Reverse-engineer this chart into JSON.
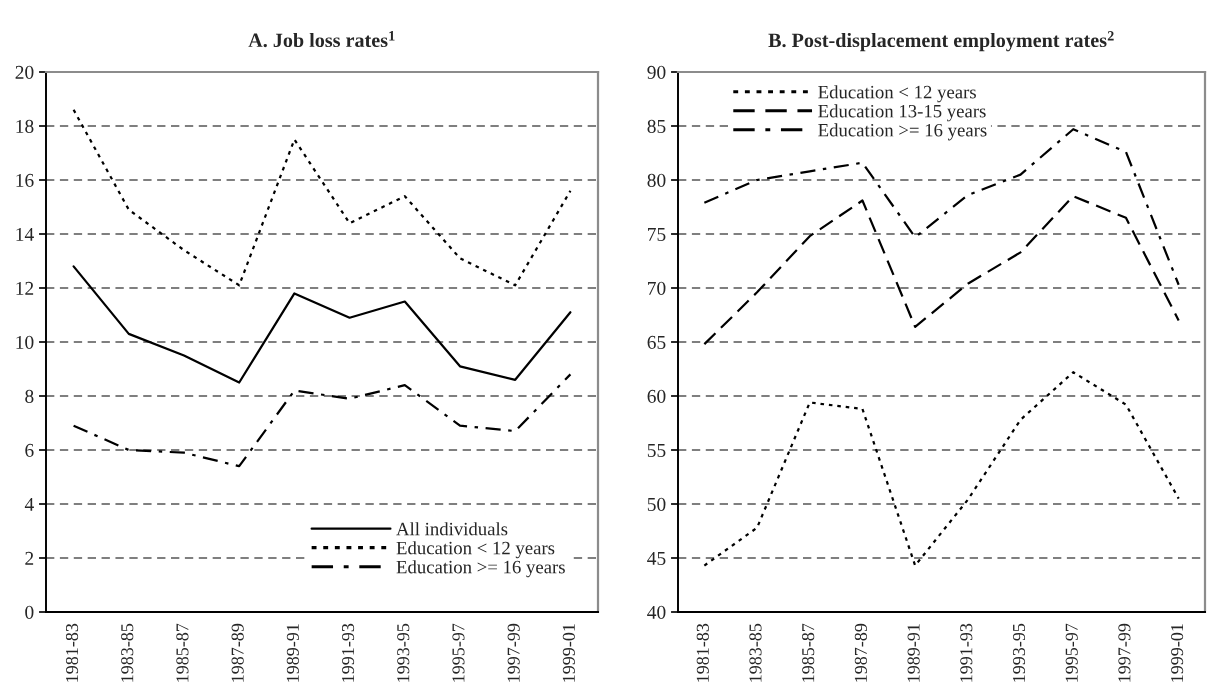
{
  "chart_data": [
    {
      "type": "line",
      "title": "A. Job loss rates$^{1}$",
      "categories": [
        "1981-83",
        "1983-85",
        "1985-87",
        "1987-89",
        "1989-91",
        "1991-93",
        "1993-95",
        "1995-97",
        "1997-99",
        "1999-01"
      ],
      "series": [
        {
          "name": "All individuals",
          "color": "#000000",
          "line_style": "solid",
          "values": [
            12.8,
            10.3,
            9.5,
            8.5,
            11.8,
            10.9,
            11.5,
            9.1,
            8.6,
            11.1
          ]
        },
        {
          "name": "Education < 12 years",
          "color": "#000000",
          "line_style": "dotted",
          "values": [
            18.6,
            14.9,
            13.4,
            12.1,
            17.5,
            14.4,
            15.4,
            13.1,
            12.1,
            15.6
          ]
        },
        {
          "name": "Education >= 16 years",
          "color": "#000000",
          "line_style": "dashdot",
          "values": [
            6.9,
            6.0,
            5.9,
            5.4,
            8.2,
            7.9,
            8.4,
            6.9,
            6.7,
            8.8
          ]
        }
      ],
      "ylim": [
        0,
        20
      ],
      "yticks": [
        0,
        2,
        4,
        6,
        8,
        10,
        12,
        14,
        16,
        18,
        20
      ],
      "grid": "y",
      "legend": "bottom right"
    },
    {
      "type": "line",
      "title": "B. Post-displacement employment rates$^{2}$",
      "categories": [
        "1981-83",
        "1983-85",
        "1985-87",
        "1987-89",
        "1989-91",
        "1991-93",
        "1993-95",
        "1995-97",
        "1997-99",
        "1999-01"
      ],
      "series": [
        {
          "name": "Education < 12 years",
          "color": "#000000",
          "line_style": "dotted",
          "values": [
            44.3,
            47.8,
            59.4,
            58.8,
            44.3,
            50.4,
            57.8,
            62.2,
            59.2,
            50.5
          ]
        },
        {
          "name": "Education 13-15 years",
          "color": "#000000",
          "line_style": "dashed",
          "values": [
            64.8,
            69.6,
            74.8,
            78.1,
            66.4,
            70.4,
            73.3,
            78.5,
            76.5,
            67.0
          ]
        },
        {
          "name": "Education >= 16 years",
          "color": "#000000",
          "line_style": "dashdot",
          "values": [
            77.9,
            80.0,
            80.8,
            81.6,
            74.7,
            78.6,
            80.5,
            84.7,
            82.6,
            70.3
          ]
        }
      ],
      "ylim": [
        40,
        90
      ],
      "yticks": [
        40,
        45,
        50,
        55,
        60,
        65,
        70,
        75,
        80,
        85,
        90
      ],
      "grid": "y",
      "legend": "top left"
    }
  ]
}
